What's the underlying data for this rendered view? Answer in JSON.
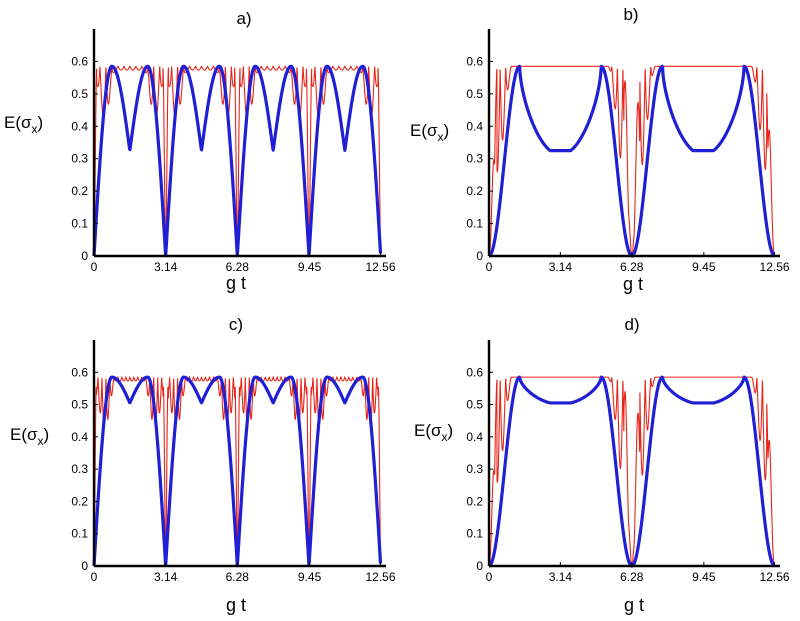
{
  "colors": {
    "thin_series": "#e8251a",
    "thick_series": "#1f1fd6",
    "axis": "#000000"
  },
  "chart_data": [
    {
      "id": "a",
      "type": "line",
      "title": "a)",
      "xlabel": "g t",
      "ylabel_base": "E(",
      "ylabel_symbol": "σ",
      "ylabel_sub": "x",
      "ylabel_close": ")",
      "xlim": [
        0,
        12.8
      ],
      "ylim": [
        0,
        0.7
      ],
      "xticks": [
        "0",
        "3.14",
        "6.28",
        "9.45",
        "12.56"
      ],
      "xtick_values": [
        0,
        3.14,
        6.28,
        9.45,
        12.56
      ],
      "yticks": [
        "0",
        "0.1",
        "0.2",
        "0.3",
        "0.4",
        "0.5",
        "0.6"
      ],
      "ytick_values": [
        0,
        0.1,
        0.2,
        0.3,
        0.4,
        0.5,
        0.6
      ],
      "thick_series": {
        "model": "sin2t",
        "min": 0.325,
        "max": 0.585
      },
      "thin_series": {
        "model": "fast",
        "freq": 2.0,
        "max": 0.585,
        "band": 0.0
      }
    },
    {
      "id": "b",
      "type": "line",
      "title": "b)",
      "xlabel": "g t",
      "ylabel_base": "E(",
      "ylabel_symbol": "σ",
      "ylabel_sub": "x",
      "ylabel_close": ")",
      "xlim": [
        0,
        12.8
      ],
      "ylim": [
        0,
        0.7
      ],
      "xticks": [
        "0",
        "3.14",
        "6.28",
        "9.45",
        "12.56"
      ],
      "xtick_values": [
        0,
        3.14,
        6.28,
        9.45,
        12.56
      ],
      "yticks": [
        "0",
        "0.1",
        "0.2",
        "0.3",
        "0.4",
        "0.5",
        "0.6"
      ],
      "ytick_values": [
        0,
        0.1,
        0.2,
        0.3,
        0.4,
        0.5,
        0.6
      ],
      "thick_series": {
        "model": "plateau",
        "min": 0.325,
        "max": 0.585
      },
      "thin_series": {
        "model": "fast-plateau",
        "freq": 4.0,
        "max": 0.585,
        "band": 0.0
      }
    },
    {
      "id": "c",
      "type": "line",
      "title": "c)",
      "xlabel": "g t",
      "ylabel_base": "E(",
      "ylabel_symbol": "σ",
      "ylabel_sub": "x",
      "ylabel_close": ")",
      "xlim": [
        0,
        12.8
      ],
      "ylim": [
        0,
        0.7
      ],
      "xticks": [
        "0",
        "3.14",
        "6.28",
        "9.45",
        "12.56"
      ],
      "xtick_values": [
        0,
        3.14,
        6.28,
        9.45,
        12.56
      ],
      "yticks": [
        "0",
        "0.1",
        "0.2",
        "0.3",
        "0.4",
        "0.5",
        "0.6"
      ],
      "ytick_values": [
        0,
        0.1,
        0.2,
        0.3,
        0.4,
        0.5,
        0.6
      ],
      "thick_series": {
        "model": "sin2t",
        "min": 0.505,
        "max": 0.585
      },
      "thin_series": {
        "model": "fast",
        "freq": 3.0,
        "max": 0.585,
        "band": 0.25
      }
    },
    {
      "id": "d",
      "type": "line",
      "title": "d)",
      "xlabel": "g t",
      "ylabel_base": "E(",
      "ylabel_symbol": "σ",
      "ylabel_sub": "x",
      "ylabel_close": ")",
      "xlim": [
        0,
        12.8
      ],
      "ylim": [
        0,
        0.7
      ],
      "xticks": [
        "0",
        "3.14",
        "6.28",
        "9.45",
        "12.56"
      ],
      "xtick_values": [
        0,
        3.14,
        6.28,
        9.45,
        12.56
      ],
      "yticks": [
        "0",
        "0.1",
        "0.2",
        "0.3",
        "0.4",
        "0.5",
        "0.6"
      ],
      "ytick_values": [
        0,
        0.1,
        0.2,
        0.3,
        0.4,
        0.5,
        0.6
      ],
      "thick_series": {
        "model": "plateau",
        "min": 0.505,
        "max": 0.585
      },
      "thin_series": {
        "model": "fast-plateau",
        "freq": 4.0,
        "max": 0.585,
        "band": 0.25
      }
    }
  ]
}
